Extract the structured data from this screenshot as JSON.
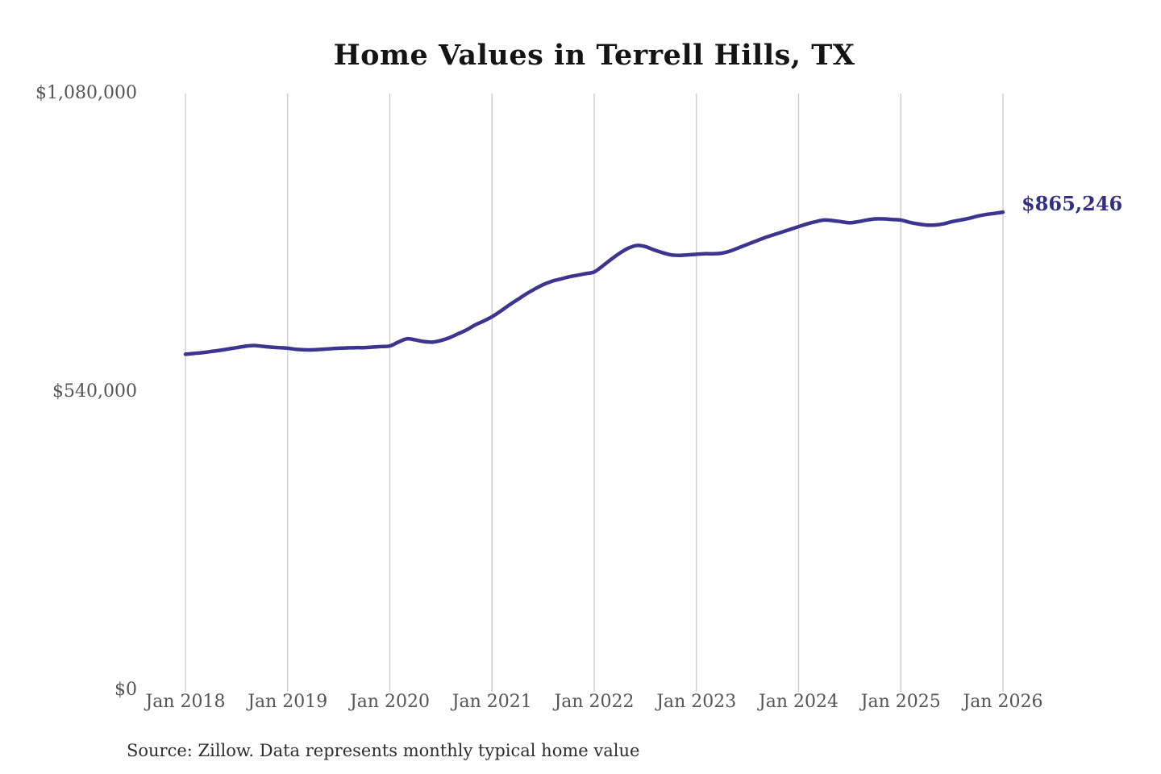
{
  "chart_data": {
    "type": "line",
    "title": "Home Values in Terrell Hills, TX",
    "source": "Source: Zillow. Data represents monthly typical home value",
    "legend": "none",
    "grid": "vertical",
    "annotation": {
      "text": "$865,246",
      "value": 865246
    },
    "x": {
      "start_month": "Jan 2018",
      "end_month": "Jan 2026",
      "frequency": "monthly",
      "count": 97
    },
    "x_axis": {
      "tick_labels": [
        "Jan 2018",
        "Jan 2019",
        "Jan 2020",
        "Jan 2021",
        "Jan 2022",
        "Jan 2023",
        "Jan 2024",
        "Jan 2025",
        "Jan 2026"
      ],
      "tick_month_indices": [
        0,
        12,
        24,
        36,
        48,
        60,
        72,
        84,
        96
      ]
    },
    "y_axis": {
      "tick_labels": [
        "$0",
        "$540,000",
        "$1,080,000"
      ],
      "tick_values": [
        0,
        540000,
        1080000
      ],
      "range": [
        0,
        1080000
      ]
    },
    "values": [
      608000,
      609500,
      611000,
      613000,
      615000,
      617500,
      620000,
      622500,
      624000,
      622500,
      621000,
      620000,
      619000,
      617000,
      616000,
      616000,
      617000,
      618000,
      619000,
      619500,
      620000,
      620000,
      621000,
      622000,
      623000,
      630000,
      636000,
      634000,
      631000,
      630000,
      633000,
      638000,
      645000,
      652000,
      661000,
      668000,
      676000,
      686000,
      697000,
      707000,
      717000,
      726000,
      734000,
      740000,
      744000,
      748000,
      751000,
      754000,
      757000,
      768000,
      780000,
      791000,
      800000,
      805000,
      803000,
      797000,
      792000,
      788000,
      787000,
      788000,
      789000,
      790000,
      790000,
      791000,
      795000,
      801000,
      807000,
      813000,
      819000,
      824000,
      829000,
      834000,
      839000,
      844000,
      848000,
      851000,
      850000,
      848000,
      846000,
      848000,
      851000,
      853000,
      853000,
      852000,
      851000,
      847000,
      844000,
      842000,
      842000,
      844000,
      848000,
      851000,
      854000,
      858000,
      861000,
      863000,
      865246
    ]
  },
  "colors": {
    "line": "#3b3590",
    "annotation_text": "#332f82",
    "gridline": "#c9c9c9",
    "title_text": "#141414",
    "tick_text": "#555555",
    "source_text": "#2d2d2d",
    "background": "#ffffff"
  }
}
